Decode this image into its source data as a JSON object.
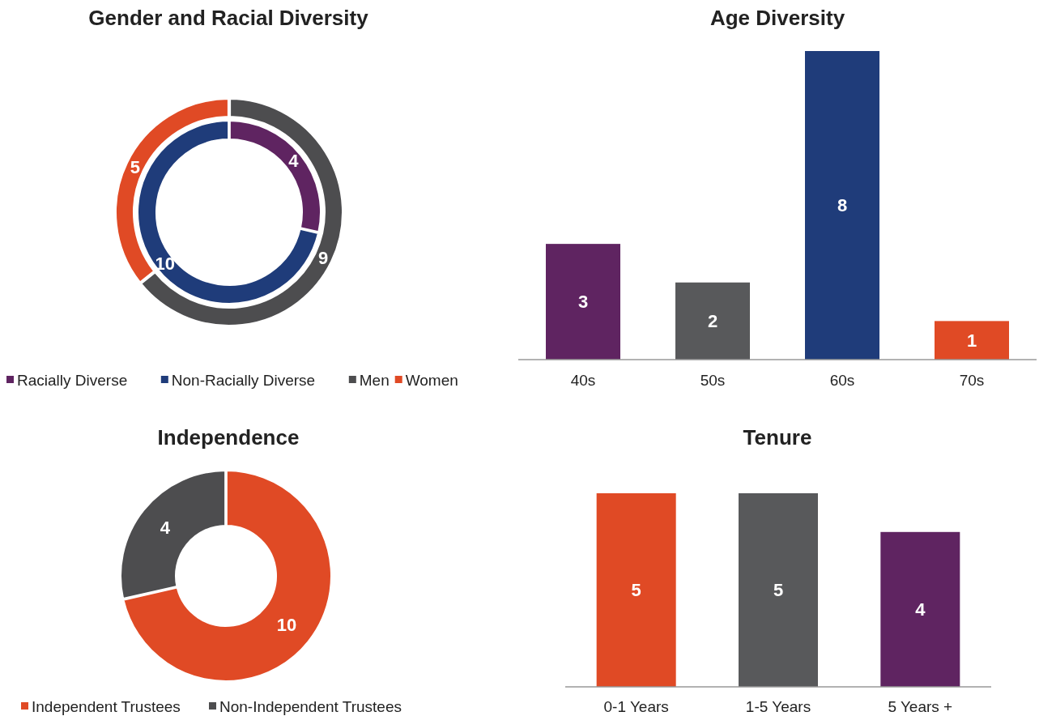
{
  "chart_data": [
    {
      "type": "donut",
      "title": "Gender and Racial Diversity",
      "categories": [
        "Racially Diverse",
        "Non-Racially Diverse",
        "Men",
        "Women"
      ],
      "colors": [
        "#5f2461",
        "#1f3c7a",
        "#4d4d4f",
        "#e04a25"
      ],
      "series": [
        {
          "values": [
            4,
            10,
            null,
            null
          ]
        },
        {
          "values": [
            null,
            null,
            9,
            5
          ]
        }
      ],
      "data_labels": true,
      "legend": "bottom"
    },
    {
      "type": "bar",
      "title": "Age Diversity",
      "categories": [
        "40s",
        "50s",
        "60s",
        "70s"
      ],
      "values": [
        3,
        2,
        8,
        1
      ],
      "colors": [
        "#5f2461",
        "#58595b",
        "#1f3c7a",
        "#e04a25"
      ],
      "data_labels": true
    },
    {
      "type": "donut",
      "title": "Independence",
      "categories": [
        "Independent Trustees",
        "Non-Independent Trustees"
      ],
      "values": [
        10,
        4
      ],
      "colors": [
        "#e04a25",
        "#4d4d4f"
      ],
      "data_labels": true,
      "legend": "bottom"
    },
    {
      "type": "bar",
      "title": "Tenure",
      "categories": [
        "0-1 Years",
        "1-5 Years",
        "5 Years +"
      ],
      "values": [
        5,
        5,
        4
      ],
      "colors": [
        "#e04a25",
        "#58595b",
        "#5f2461"
      ],
      "data_labels": true
    }
  ]
}
